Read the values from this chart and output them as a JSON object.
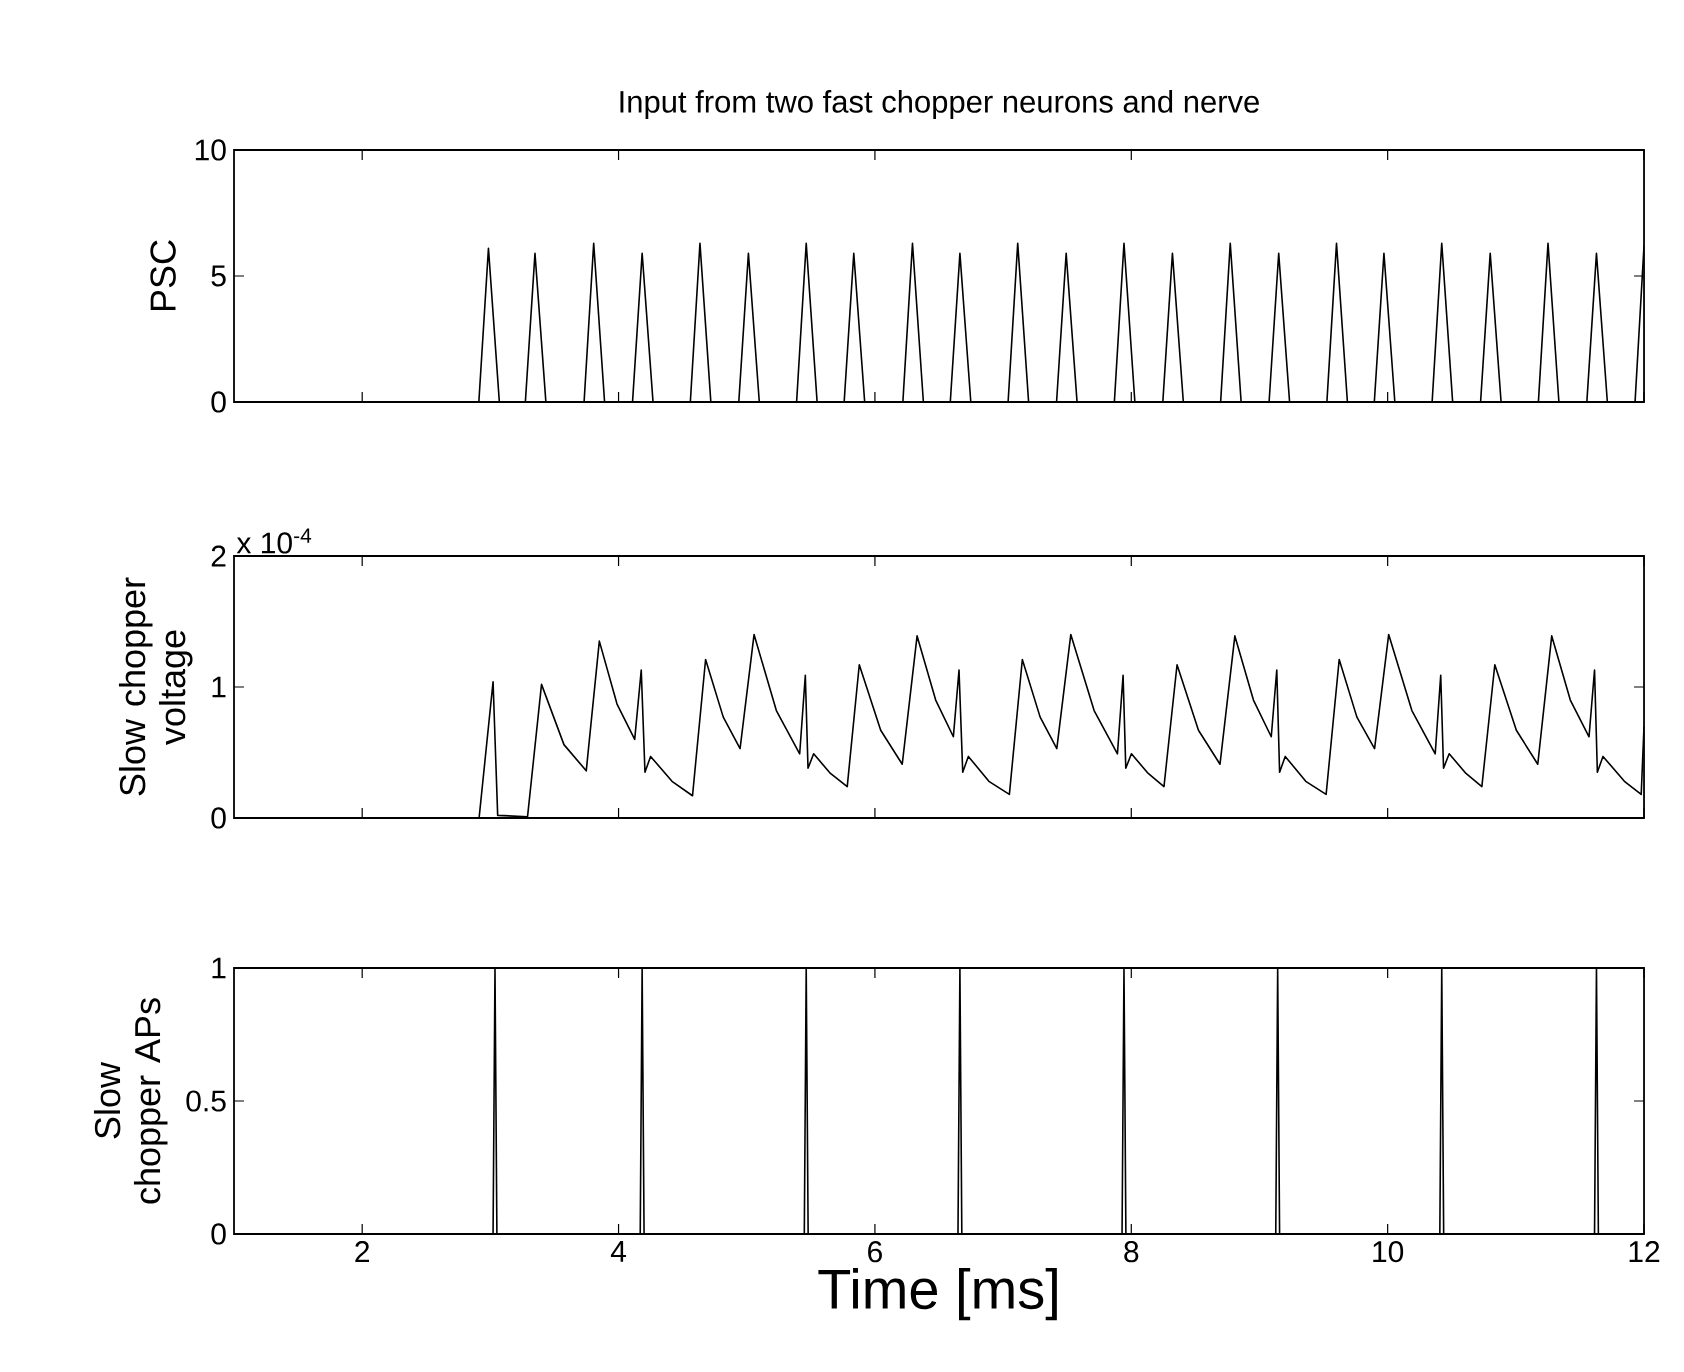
{
  "chart_data": [
    {
      "type": "line",
      "title": "Input from two fast chopper neurons and nerve",
      "ylabel": "PSC",
      "color": "#000000",
      "xlim": [
        1,
        12
      ],
      "ylim": [
        0,
        10
      ],
      "xticks": [
        2,
        4,
        6,
        8,
        10,
        12
      ],
      "yticks": [
        0,
        5,
        10
      ],
      "tick_labels": "y",
      "x": [
        1,
        2.91,
        2.985,
        3.07,
        3.273,
        3.348,
        3.433,
        3.731,
        3.806,
        3.891,
        4.109,
        4.184,
        4.269,
        4.56,
        4.635,
        4.72,
        4.938,
        5.013,
        5.098,
        5.389,
        5.464,
        5.549,
        5.76,
        5.835,
        5.92,
        6.218,
        6.293,
        6.378,
        6.588,
        6.663,
        6.748,
        7.039,
        7.114,
        7.199,
        7.417,
        7.492,
        7.577,
        7.868,
        7.943,
        8.028,
        8.246,
        8.321,
        8.406,
        8.697,
        8.772,
        8.857,
        9.075,
        9.15,
        9.235,
        9.526,
        9.601,
        9.686,
        9.896,
        9.971,
        10.056,
        10.347,
        10.422,
        10.507,
        10.725,
        10.8,
        10.885,
        11.176,
        11.251,
        11.336,
        11.554,
        11.629,
        11.714,
        11.93,
        12.0
      ],
      "values": [
        0,
        0,
        6.1,
        0,
        0,
        5.9,
        0,
        0,
        6.3,
        0,
        0,
        5.9,
        0,
        0,
        6.3,
        0,
        0,
        5.9,
        0,
        0,
        6.3,
        0,
        0,
        5.9,
        0,
        0,
        6.3,
        0,
        0,
        5.9,
        0,
        0,
        6.3,
        0,
        0,
        5.9,
        0,
        0,
        6.3,
        0,
        0,
        5.9,
        0,
        0,
        6.3,
        0,
        0,
        5.9,
        0,
        0,
        6.3,
        0,
        0,
        5.9,
        0,
        0,
        6.3,
        0,
        0,
        5.9,
        0,
        0,
        6.3,
        0,
        0,
        5.9,
        0,
        0,
        6.2
      ]
    },
    {
      "type": "line",
      "ylabel": "Slow chopper voltage",
      "annotations": [
        "x 10$^{-4}$"
      ],
      "color": "#000000",
      "xlim": [
        1,
        12
      ],
      "ylim": [
        0,
        2
      ],
      "xticks": [
        2,
        4,
        6,
        8,
        10,
        12
      ],
      "yticks": [
        0,
        1,
        2
      ],
      "tick_labels": "y",
      "x": [
        1,
        2.912,
        3.021,
        3.057,
        3.29,
        3.399,
        3.574,
        3.748,
        3.85,
        3.988,
        4.126,
        4.177,
        4.206,
        4.25,
        4.417,
        4.577,
        4.679,
        4.817,
        4.948,
        5.057,
        5.231,
        5.413,
        5.457,
        5.478,
        5.522,
        5.653,
        5.784,
        5.878,
        6.045,
        6.213,
        6.329,
        6.474,
        6.612,
        6.656,
        6.685,
        6.729,
        6.889,
        7.049,
        7.15,
        7.289,
        7.419,
        7.528,
        7.71,
        7.892,
        7.936,
        7.957,
        8.001,
        8.132,
        8.255,
        8.357,
        8.524,
        8.692,
        8.808,
        8.953,
        9.092,
        9.135,
        9.157,
        9.201,
        9.361,
        9.52,
        9.622,
        9.76,
        9.898,
        10.008,
        10.189,
        10.371,
        10.414,
        10.436,
        10.48,
        10.611,
        10.735,
        10.836,
        11.004,
        11.171,
        11.28,
        11.425,
        11.571,
        11.614,
        11.636,
        11.68,
        11.847,
        11.978,
        12.0
      ],
      "values": [
        0,
        0,
        1.04,
        0.02,
        0.01,
        1.02,
        0.56,
        0.36,
        1.35,
        0.87,
        0.6,
        1.13,
        0.35,
        0.47,
        0.28,
        0.17,
        1.21,
        0.77,
        0.53,
        1.4,
        0.82,
        0.49,
        1.09,
        0.38,
        0.49,
        0.34,
        0.24,
        1.17,
        0.67,
        0.41,
        1.39,
        0.9,
        0.62,
        1.13,
        0.35,
        0.47,
        0.28,
        0.18,
        1.21,
        0.77,
        0.53,
        1.4,
        0.82,
        0.49,
        1.09,
        0.38,
        0.49,
        0.34,
        0.24,
        1.17,
        0.67,
        0.41,
        1.39,
        0.9,
        0.62,
        1.13,
        0.35,
        0.47,
        0.28,
        0.18,
        1.21,
        0.77,
        0.53,
        1.4,
        0.82,
        0.49,
        1.09,
        0.38,
        0.49,
        0.34,
        0.24,
        1.17,
        0.67,
        0.41,
        1.39,
        0.9,
        0.62,
        1.13,
        0.35,
        0.47,
        0.28,
        0.18,
        0.7
      ]
    },
    {
      "type": "line",
      "xlabel": "Time [ms]",
      "ylabel": "Slow chopper APs",
      "color": "#000000",
      "xlim": [
        1,
        12
      ],
      "ylim": [
        0,
        1
      ],
      "xticks": [
        2,
        4,
        6,
        8,
        10,
        12
      ],
      "yticks": [
        0,
        0.5,
        1
      ],
      "x": [
        1,
        3.021,
        3.036,
        3.051,
        4.169,
        4.184,
        4.199,
        5.449,
        5.464,
        5.479,
        6.648,
        6.663,
        6.678,
        7.928,
        7.943,
        7.958,
        9.127,
        9.142,
        9.157,
        10.407,
        10.422,
        10.437,
        11.614,
        11.629,
        11.644,
        12
      ],
      "values": [
        0,
        0,
        1,
        0,
        0,
        1,
        0,
        0,
        1,
        0,
        0,
        1,
        0,
        0,
        1,
        0,
        0,
        1,
        0,
        0,
        1,
        0,
        0,
        1,
        0,
        0
      ]
    }
  ]
}
